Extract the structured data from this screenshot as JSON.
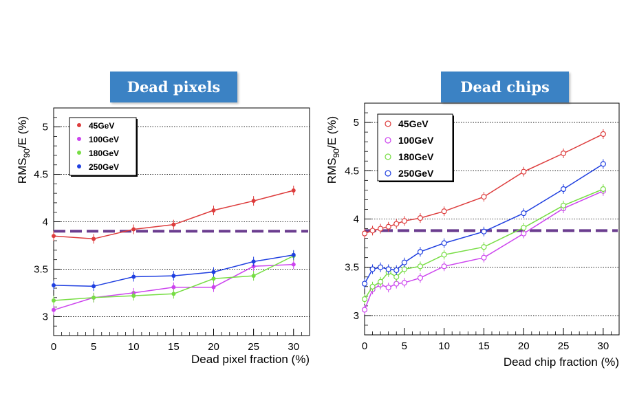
{
  "panels": {
    "left": {
      "banner": "Dead pixels",
      "chart_data": {
        "type": "line",
        "title": "Dead pixels",
        "xlabel": "Dead pixel fraction (%)",
        "ylabel_main": "RMS",
        "ylabel_sub": "90",
        "ylabel_tail": "/E (%)",
        "xlim": [
          0,
          32
        ],
        "ylim": [
          2.8,
          5.2
        ],
        "xticks": [
          0,
          5,
          10,
          15,
          20,
          25,
          30
        ],
        "yticks": [
          3,
          3.5,
          4,
          4.5,
          5
        ],
        "marker": "filled",
        "reference_line": 3.9,
        "x": [
          0,
          5,
          10,
          15,
          20,
          25,
          30
        ],
        "series": [
          {
            "name": "45GeV",
            "color": "#dd3c3c",
            "values": [
              3.85,
              3.82,
              3.92,
              3.97,
              4.12,
              4.22,
              4.33
            ]
          },
          {
            "name": "100GeV",
            "color": "#cc44ee",
            "values": [
              3.07,
              3.2,
              3.25,
              3.31,
              3.31,
              3.53,
              3.55
            ]
          },
          {
            "name": "180GeV",
            "color": "#77dd44",
            "values": [
              3.17,
              3.2,
              3.22,
              3.24,
              3.4,
              3.43,
              3.64
            ]
          },
          {
            "name": "250GeV",
            "color": "#1f3fe0",
            "values": [
              3.33,
              3.32,
              3.42,
              3.43,
              3.47,
              3.58,
              3.65
            ]
          }
        ]
      }
    },
    "right": {
      "banner": "Dead chips",
      "chart_data": {
        "type": "line",
        "title": "Dead chips",
        "xlabel": "Dead chip fraction (%)",
        "ylabel_main": "RMS",
        "ylabel_sub": "90",
        "ylabel_tail": "/E (%)",
        "xlim": [
          0,
          32
        ],
        "ylim": [
          2.8,
          5.2
        ],
        "xticks": [
          0,
          5,
          10,
          15,
          20,
          25,
          30
        ],
        "yticks": [
          3,
          3.5,
          4,
          4.5,
          5
        ],
        "marker": "open",
        "reference_line": 3.88,
        "x": [
          0,
          1,
          2,
          3,
          4,
          5,
          7,
          10,
          15,
          20,
          25,
          30
        ],
        "series": [
          {
            "name": "45GeV",
            "color": "#dd3c3c",
            "values": [
              3.85,
              3.88,
              3.9,
              3.92,
              3.95,
              3.98,
              4.01,
              4.08,
              4.23,
              4.49,
              4.68,
              4.88
            ]
          },
          {
            "name": "100GeV",
            "color": "#cc44ee",
            "values": [
              3.06,
              3.27,
              3.32,
              3.29,
              3.33,
              3.34,
              3.39,
              3.51,
              3.6,
              3.85,
              4.11,
              4.29
            ]
          },
          {
            "name": "180GeV",
            "color": "#77dd44",
            "values": [
              3.17,
              3.3,
              3.35,
              3.45,
              3.4,
              3.48,
              3.51,
              3.63,
              3.71,
              3.91,
              4.14,
              4.31
            ]
          },
          {
            "name": "250GeV",
            "color": "#1f3fe0",
            "values": [
              3.33,
              3.48,
              3.5,
              3.48,
              3.47,
              3.55,
              3.66,
              3.75,
              3.87,
              4.06,
              4.31,
              4.57
            ]
          }
        ]
      }
    }
  }
}
